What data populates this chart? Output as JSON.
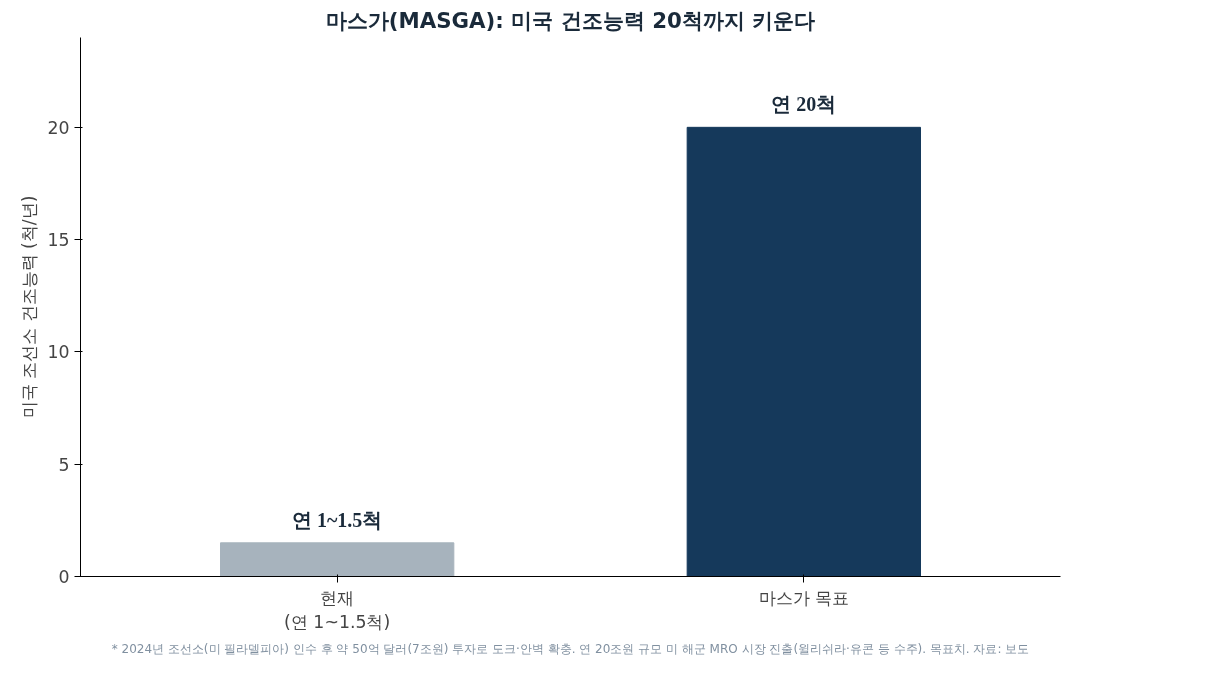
{
  "chart_data": {
    "type": "bar",
    "title": "마스가(MASGA): 미국 건조능력 20척까지 키운다",
    "ylabel": "미국 조선소 건조능력 (척/년)",
    "categories": [
      "현재\n(연 1~1.5척)",
      "마스가 목표"
    ],
    "values": [
      1.5,
      20
    ],
    "colors": [
      "#a7b3bd",
      "#15395b"
    ],
    "value_labels": [
      "연 1~1.5척",
      "연 20척"
    ],
    "ylim": [
      0,
      24
    ],
    "yticks": [
      0,
      5,
      10,
      15,
      20
    ],
    "grid": false,
    "annotations": [
      "* 2024년 조선소(미 필라델피아) 인수 후 약 50억 달러(7조원) 투자로 도크·안벽 확충. 연 20조원 규모 미 해군 MRO 시장 진출(윌리쉬라·유콘 등 수주). 목표치. 자료: 보도"
    ]
  }
}
